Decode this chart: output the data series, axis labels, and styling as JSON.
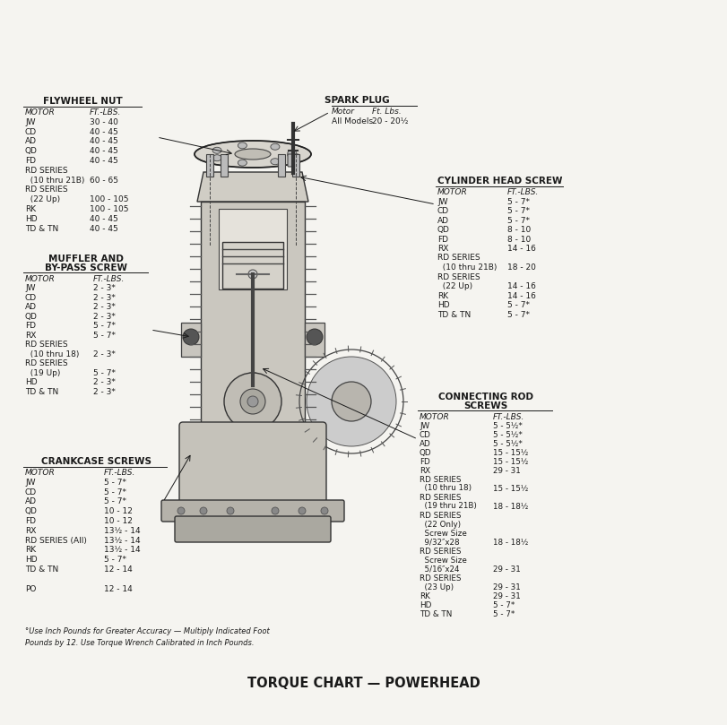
{
  "title": "TORQUE CHART — POWERHEAD",
  "background_color": "#f5f4f0",
  "text_color": "#1a1a1a",
  "footnote": "°Use Inch Pounds for Greater Accuracy — Multiply Indicated Foot\nPounds by 12. Use Torque Wrench Calibrated in Inch Pounds.",
  "flywheel_nut": {
    "title": "FLYWHEEL NUT",
    "header": [
      "MOTOR",
      "FT.-LBS."
    ],
    "rows": [
      [
        "JW",
        "30 - 40"
      ],
      [
        "CD",
        "40 - 45"
      ],
      [
        "AD",
        "40 - 45"
      ],
      [
        "QD",
        "40 - 45"
      ],
      [
        "FD",
        "40 - 45"
      ],
      [
        "RD SERIES",
        ""
      ],
      [
        "  (10 thru 21B)",
        "60 - 65"
      ],
      [
        "RD SERIES",
        ""
      ],
      [
        "  (22 Up)",
        "100 - 105"
      ],
      [
        "RK",
        "100 - 105"
      ],
      [
        "HD",
        "40 - 45"
      ],
      [
        "TD & TN",
        "40 - 45"
      ]
    ]
  },
  "spark_plug": {
    "title": "SPARK PLUG",
    "header": [
      "Motor",
      "Ft. Lbs."
    ],
    "rows": [
      [
        "All Models",
        "20 - 20½"
      ]
    ]
  },
  "cylinder_head_screw": {
    "title": "CYLINDER HEAD SCREW",
    "header": [
      "MOTOR",
      "FT.-LBS."
    ],
    "rows": [
      [
        "JW",
        "5 - 7*"
      ],
      [
        "CD",
        "5 - 7*"
      ],
      [
        "AD",
        "5 - 7*"
      ],
      [
        "QD",
        "8 - 10"
      ],
      [
        "FD",
        "8 - 10"
      ],
      [
        "RX",
        "14 - 16"
      ],
      [
        "RD SERIES",
        ""
      ],
      [
        "  (10 thru 21B)",
        "18 - 20"
      ],
      [
        "RD SERIES",
        ""
      ],
      [
        "  (22 Up)",
        "14 - 16"
      ],
      [
        "RK",
        "14 - 16"
      ],
      [
        "HD",
        "5 - 7*"
      ],
      [
        "TD & TN",
        "5 - 7*"
      ]
    ]
  },
  "muffler_bypass": {
    "title": "MUFFLER AND\nBY-PASS SCREW",
    "header": [
      "MOTOR",
      "FT.-LBS."
    ],
    "rows": [
      [
        "JW",
        "2 - 3*"
      ],
      [
        "CD",
        "2 - 3*"
      ],
      [
        "AD",
        "2 - 3*"
      ],
      [
        "QD",
        "2 - 3*"
      ],
      [
        "FD",
        "5 - 7*"
      ],
      [
        "RX",
        "5 - 7*"
      ],
      [
        "RD SERIES",
        ""
      ],
      [
        "  (10 thru 18)",
        "2 - 3*"
      ],
      [
        "RD SERIES",
        ""
      ],
      [
        "  (19 Up)",
        "5 - 7*"
      ],
      [
        "HD",
        "2 - 3*"
      ],
      [
        "TD & TN",
        "2 - 3*"
      ]
    ]
  },
  "connecting_rod_screws": {
    "title": "CONNECTING ROD\nSCREWS",
    "header": [
      "MOTOR",
      "FT.-LBS."
    ],
    "rows": [
      [
        "JW",
        "5 - 5½*"
      ],
      [
        "CD",
        "5 - 5½*"
      ],
      [
        "AD",
        "5 - 5½*"
      ],
      [
        "QD",
        "15 - 15½"
      ],
      [
        "FD",
        "15 - 15½"
      ],
      [
        "RX",
        "29 - 31"
      ],
      [
        "RD SERIES",
        ""
      ],
      [
        "  (10 thru 18)",
        "15 - 15½"
      ],
      [
        "RD SERIES",
        ""
      ],
      [
        "  (19 thru 21B)",
        "18 - 18½"
      ],
      [
        "RD SERIES",
        ""
      ],
      [
        "  (22 Only)",
        ""
      ],
      [
        "  Screw Size",
        ""
      ],
      [
        "  9/32″x28",
        "18 - 18½"
      ],
      [
        "RD SERIES",
        ""
      ],
      [
        "  Screw Size",
        ""
      ],
      [
        "  5/16″x24",
        "29 - 31"
      ],
      [
        "RD SERIES",
        ""
      ],
      [
        "  (23 Up)",
        "29 - 31"
      ],
      [
        "RK",
        "29 - 31"
      ],
      [
        "HD",
        "5 - 7*"
      ],
      [
        "TD & TN",
        "5 - 7*"
      ]
    ]
  },
  "crankcase_screws": {
    "title": "CRANKCASE SCREWS",
    "header": [
      "MOTOR",
      "FT.-LBS."
    ],
    "rows": [
      [
        "JW",
        "5 - 7*"
      ],
      [
        "CD",
        "5 - 7*"
      ],
      [
        "AD",
        "5 - 7*"
      ],
      [
        "QD",
        "10 - 12"
      ],
      [
        "FD",
        "10 - 12"
      ],
      [
        "RX",
        "13½ - 14"
      ],
      [
        "RD SERIES (All)",
        "13½ - 14"
      ],
      [
        "RK",
        "13½ - 14"
      ],
      [
        "HD",
        "5 - 7*"
      ],
      [
        "TD & TN",
        "12 - 14"
      ],
      [
        "",
        ""
      ],
      [
        "PO",
        "12 - 14"
      ]
    ]
  }
}
